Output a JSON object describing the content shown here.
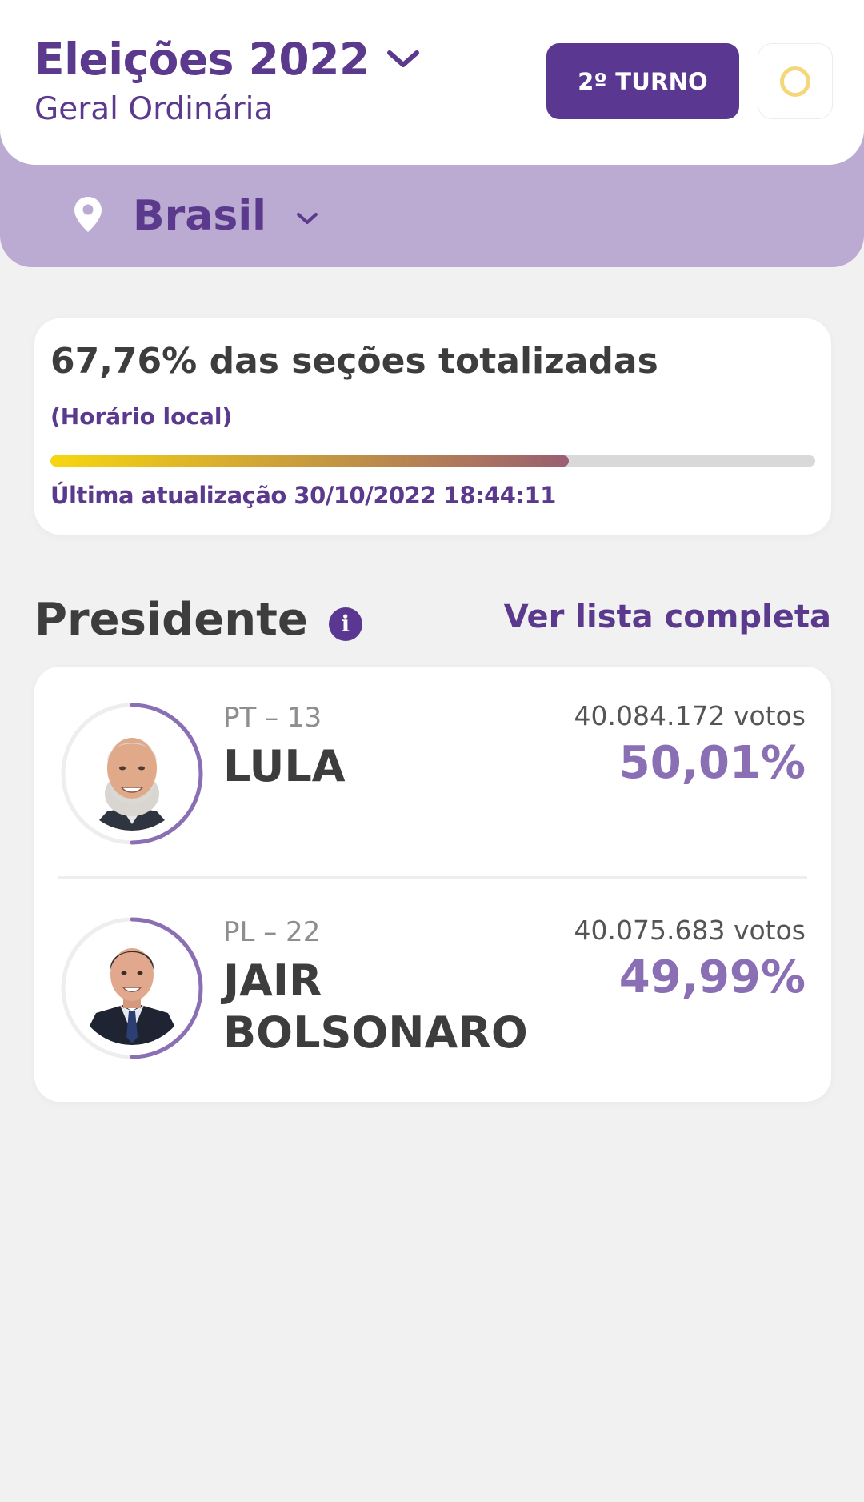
{
  "header": {
    "title": "Eleições 2022",
    "subtitle": "Geral Ordinária",
    "round_button": "2º TURNO",
    "location": "Brasil"
  },
  "progress": {
    "headline": "67,76% das seções totalizadas",
    "timezone_note": "(Horário local)",
    "percent": 67.76,
    "last_update": "Última atualização 30/10/2022 18:44:11"
  },
  "section": {
    "title": "Presidente",
    "see_all": "Ver lista completa"
  },
  "candidates": [
    {
      "party": "PT – 13",
      "name": "LULA",
      "votes": "40.084.172 votos",
      "percent": "50,01%",
      "share": 50.01
    },
    {
      "party": "PL – 22",
      "name": "JAIR BOLSONARO",
      "votes": "40.075.683 votos",
      "percent": "49,99%",
      "share": 49.99
    }
  ],
  "colors": {
    "brand_purple": "#5a3790",
    "location_bar": "#bbaad2",
    "percent_purple": "#8a6fb5",
    "progress_start": "#f6d70f",
    "progress_end": "#9a5f72",
    "theme_icon": "#f3d77a"
  },
  "icons": {
    "title_dropdown": "chevron-down-icon",
    "location": "map-pin-icon",
    "location_dropdown": "chevron-down-icon",
    "theme": "sun-icon",
    "info": "info-icon"
  }
}
